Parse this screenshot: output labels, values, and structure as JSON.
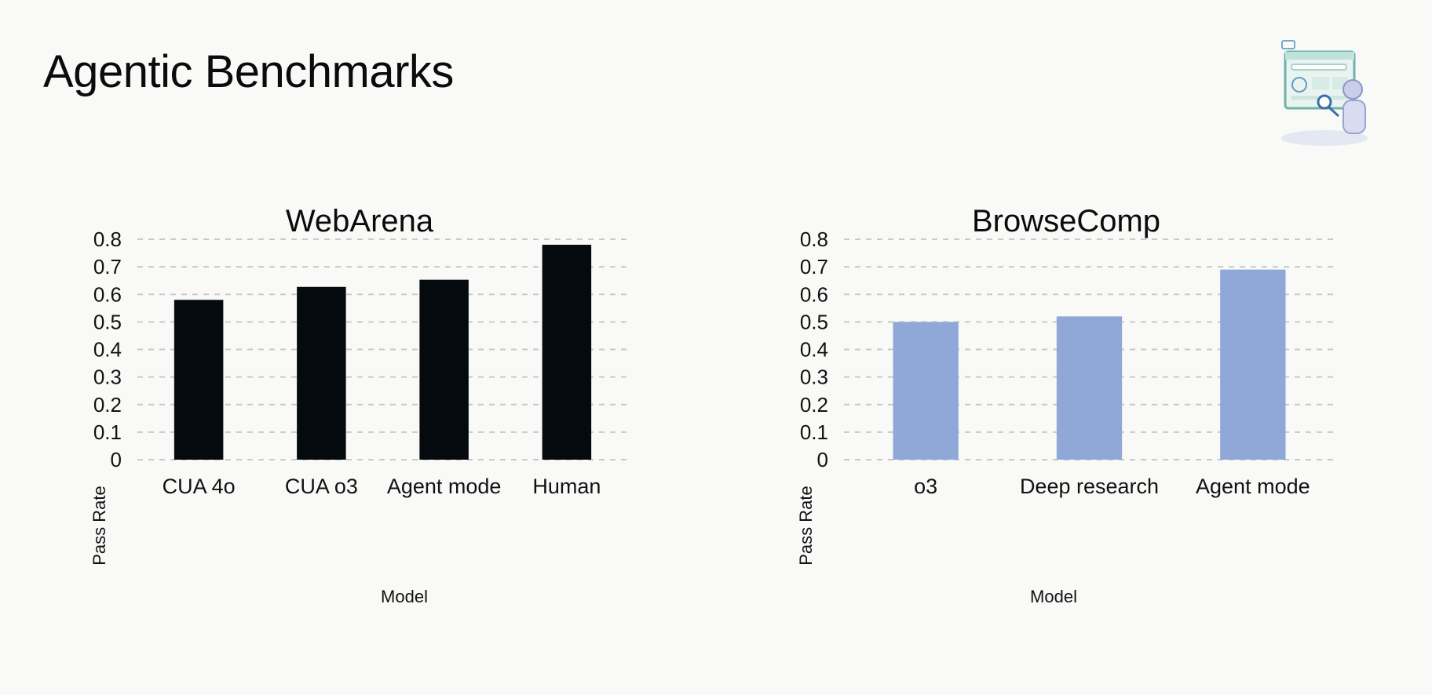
{
  "slide": {
    "title": "Agentic Benchmarks"
  },
  "icons": {
    "illustration": "robot-browser-search-illustration"
  },
  "chart_data": [
    {
      "type": "bar",
      "title": "WebArena",
      "xlabel": "Model",
      "ylabel": "Pass Rate",
      "categories": [
        "CUA 4o",
        "CUA o3",
        "Agent mode",
        "Human"
      ],
      "values": [
        0.58,
        0.627,
        0.653,
        0.78
      ],
      "ylim": [
        0,
        0.8
      ],
      "yticks": [
        "0",
        "0.1",
        "0.2",
        "0.3",
        "0.4",
        "0.5",
        "0.6",
        "0.7",
        "0.8"
      ],
      "grid": true,
      "bar_color": "#050a0e"
    },
    {
      "type": "bar",
      "title": "BrowseComp",
      "xlabel": "Model",
      "ylabel": "Pass Rate",
      "categories": [
        "o3",
        "Deep research",
        "Agent mode"
      ],
      "values": [
        0.5,
        0.52,
        0.69
      ],
      "ylim": [
        0,
        0.8
      ],
      "yticks": [
        "0",
        "0.1",
        "0.2",
        "0.3",
        "0.4",
        "0.5",
        "0.6",
        "0.7",
        "0.8"
      ],
      "grid": true,
      "bar_color": "#8fa8d8"
    }
  ]
}
